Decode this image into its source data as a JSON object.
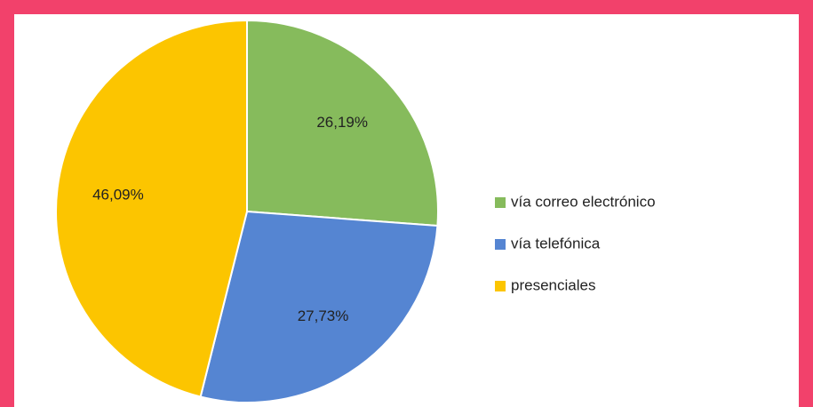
{
  "chart_data": {
    "type": "pie",
    "categories": [
      "vía correo electrónico",
      "vía telefónica",
      "presenciales"
    ],
    "values": [
      26.19,
      27.73,
      46.09
    ],
    "value_labels": [
      "26,19%",
      "27,73%",
      "46,09%"
    ],
    "colors": [
      "#86bb5c",
      "#5585d2",
      "#fcc500"
    ],
    "legend": "right"
  }
}
